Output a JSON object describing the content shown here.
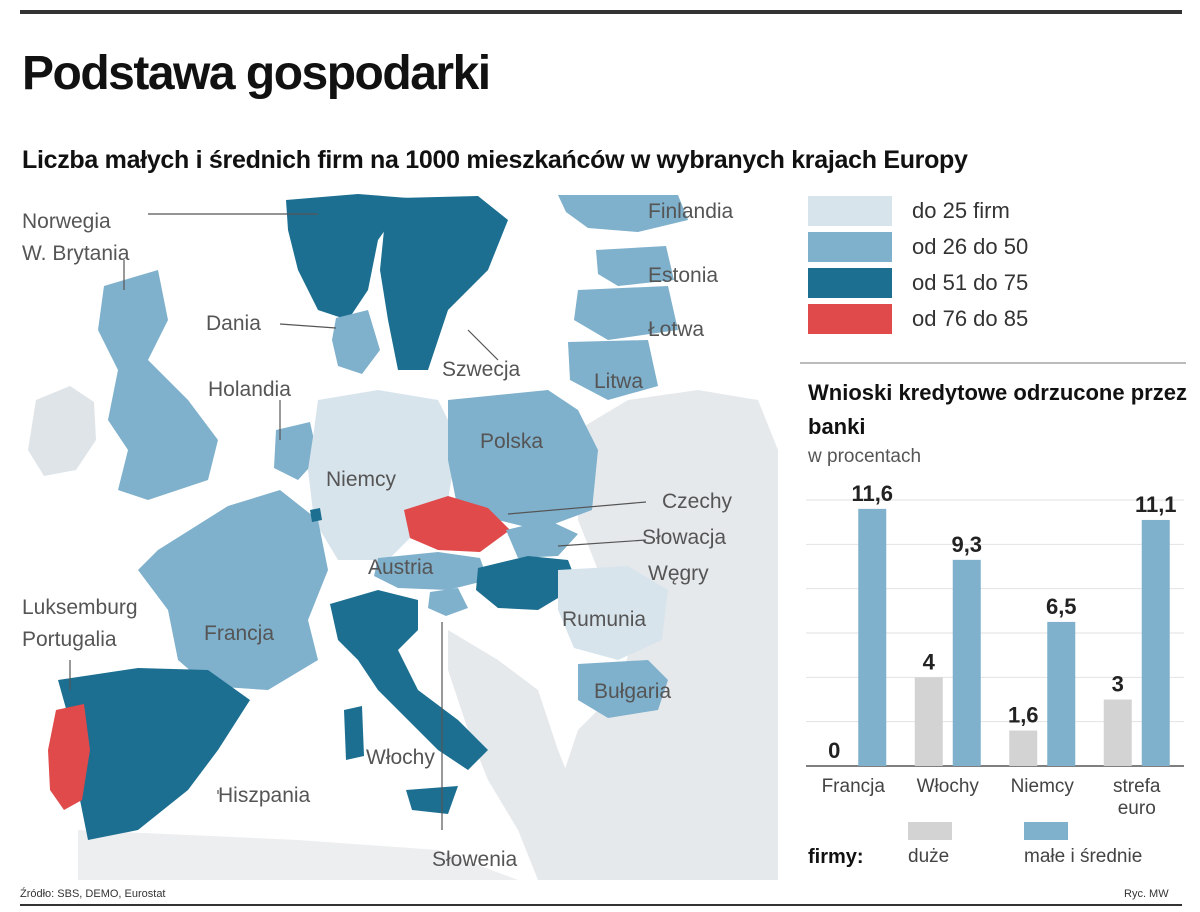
{
  "title": "Podstawa gospodarki",
  "subtitle": "Liczba małych i średnich firm na 1000 mieszkańców w wybranych krajach Europy",
  "colors": {
    "c1": "#d8e4ec",
    "c2": "#7fb0cc",
    "c3": "#1c6f91",
    "c4": "#e04a4a",
    "background_land": "#e6e9ec",
    "sea": "#ffffff",
    "bar_large": "#d3d3d3",
    "bar_sme": "#7fb0cc"
  },
  "map": {
    "legend": [
      {
        "label": "do 25 firm",
        "color_key": "c1"
      },
      {
        "label": "od 26 do 50",
        "color_key": "c2"
      },
      {
        "label": "od 51 do 75",
        "color_key": "c3"
      },
      {
        "label": "od 76 do 85",
        "color_key": "c4"
      }
    ],
    "countries": [
      {
        "name": "Norwegia",
        "class": "c3"
      },
      {
        "name": "W. Brytania",
        "class": "c2"
      },
      {
        "name": "Dania",
        "class": "c2"
      },
      {
        "name": "Holandia",
        "class": "c2"
      },
      {
        "name": "Niemcy",
        "class": "c1"
      },
      {
        "name": "Szwecja",
        "class": "c3"
      },
      {
        "name": "Finlandia",
        "class": "c2"
      },
      {
        "name": "Estonia",
        "class": "c2"
      },
      {
        "name": "Łotwa",
        "class": "c2"
      },
      {
        "name": "Litwa",
        "class": "c2"
      },
      {
        "name": "Polska",
        "class": "c2"
      },
      {
        "name": "Czechy",
        "class": "c4"
      },
      {
        "name": "Słowacja",
        "class": "c2"
      },
      {
        "name": "Węgry",
        "class": "c3"
      },
      {
        "name": "Austria",
        "class": "c2"
      },
      {
        "name": "Rumunia",
        "class": "c1"
      },
      {
        "name": "Bułgaria",
        "class": "c2"
      },
      {
        "name": "Francja",
        "class": "c2"
      },
      {
        "name": "Luksemburg",
        "class": "c3"
      },
      {
        "name": "Portugalia",
        "class": "c4"
      },
      {
        "name": "Hiszpania",
        "class": "c3"
      },
      {
        "name": "Włochy",
        "class": "c3"
      },
      {
        "name": "Słowenia",
        "class": "c2"
      }
    ]
  },
  "chart_data": {
    "type": "bar",
    "title": "Wnioski kredytowe odrzucone przez banki",
    "unit": "w procentach",
    "categories": [
      "Francja",
      "Włochy",
      "Niemcy",
      "strefa euro"
    ],
    "series": [
      {
        "name": "duże",
        "color_key": "bar_large",
        "values": [
          0,
          4,
          1.6,
          3
        ]
      },
      {
        "name": "małe i średnie",
        "color_key": "bar_sme",
        "values": [
          11.6,
          9.3,
          6.5,
          11.1
        ]
      }
    ],
    "value_labels": {
      "duże": [
        "0",
        "4",
        "1,6",
        "3"
      ],
      "małe i średnie": [
        "11,6",
        "9,3",
        "6,5",
        "11,1"
      ]
    },
    "ylim": [
      0,
      12
    ],
    "grid": true,
    "legend_title": "firmy:",
    "legend_position": "bottom"
  },
  "source": "Źródło: SBS, DEMO, Eurostat",
  "credit": "Ryc. MW"
}
